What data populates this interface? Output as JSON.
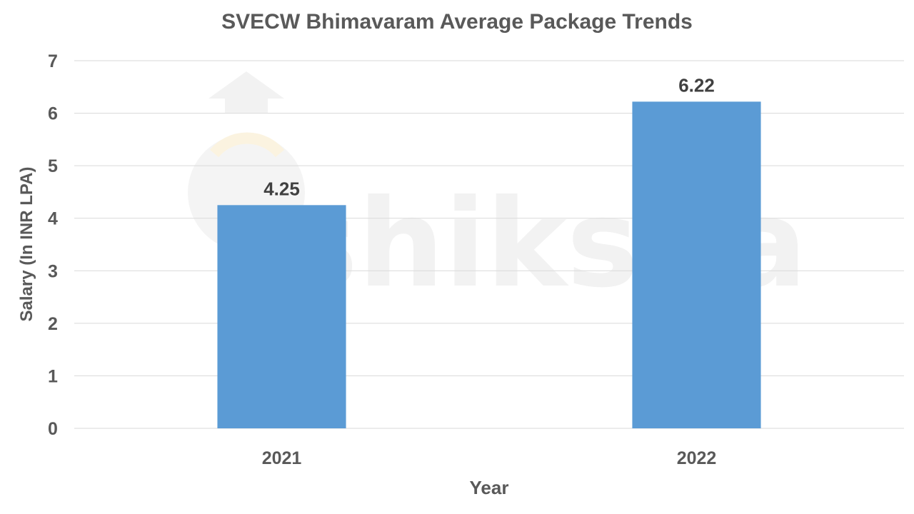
{
  "chart_data": {
    "type": "bar",
    "title": "SVECW Bhimavaram  Average Package Trends",
    "xlabel": "Year",
    "ylabel": "Salary (In INR LPA)",
    "categories": [
      "2021",
      "2022"
    ],
    "values": [
      4.25,
      6.22
    ],
    "data_labels": [
      "4.25",
      "6.22"
    ],
    "yticks": [
      "0",
      "1",
      "2",
      "3",
      "4",
      "5",
      "6",
      "7"
    ],
    "ylim": [
      0,
      7
    ],
    "grid": true,
    "legend": "none",
    "bar_color": "#5b9bd5",
    "watermark": "shiksha"
  }
}
